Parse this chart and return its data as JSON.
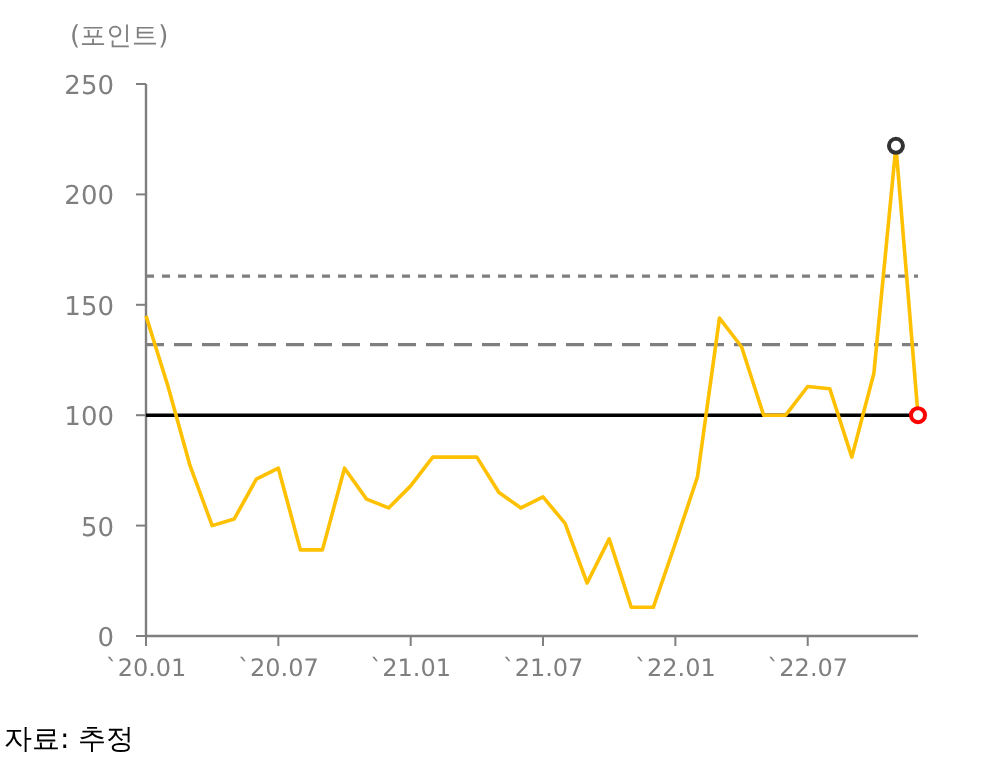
{
  "chart_data": {
    "type": "line",
    "ylabel": "(포인트)",
    "annotations": [
      "자료: 추정"
    ],
    "x": [
      "2020-01",
      "2020-02",
      "2020-03",
      "2020-04",
      "2020-05",
      "2020-06",
      "2020-07",
      "2020-08",
      "2020-09",
      "2020-10",
      "2020-11",
      "2020-12",
      "2021-01",
      "2021-02",
      "2021-03",
      "2021-04",
      "2021-05",
      "2021-06",
      "2021-07",
      "2021-08",
      "2021-09",
      "2021-10",
      "2021-11",
      "2021-12",
      "2022-01",
      "2022-02",
      "2022-03",
      "2022-04",
      "2022-05",
      "2022-06",
      "2022-07",
      "2022-08",
      "2022-09",
      "2022-10",
      "2022-11",
      "2022-12"
    ],
    "series": [
      {
        "color": "#ffc000",
        "marker": "none",
        "values": [
          145,
          113,
          77,
          50,
          53,
          71,
          76,
          39,
          39,
          76,
          62,
          58,
          68,
          81,
          81,
          81,
          65,
          58,
          63,
          51,
          24,
          44,
          13,
          13,
          42,
          72,
          144,
          131,
          100,
          100,
          113,
          112,
          81,
          119,
          222,
          100
        ]
      },
      {
        "type": "scatter",
        "marker": "circle",
        "x": [
          "2022-11",
          "2022-12"
        ],
        "colors": [
          "#333333",
          "#ff0000"
        ],
        "values": [
          222,
          100
        ]
      }
    ],
    "xlim": [
      "2020-01",
      "2022-12"
    ],
    "xticks": [
      {
        "value": "2020-01",
        "label": "`20.01"
      },
      {
        "value": "2020-07",
        "label": "`20.07"
      },
      {
        "value": "2021-01",
        "label": "`21.01"
      },
      {
        "value": "2021-07",
        "label": "`21.07"
      },
      {
        "value": "2022-01",
        "label": "`22.01"
      },
      {
        "value": "2022-07",
        "label": "`22.07"
      }
    ],
    "ylim": [
      0,
      250
    ],
    "yticks": [
      0,
      50,
      100,
      150,
      200,
      250
    ],
    "ref_lines": [
      {
        "axis": "y",
        "value": 163,
        "color": "#7f7f7f",
        "line_style": "dotted"
      },
      {
        "axis": "y",
        "value": 132,
        "color": "#7f7f7f",
        "line_style": "dashed"
      },
      {
        "axis": "y",
        "value": 100,
        "color": "#000000",
        "line_style": "solid"
      }
    ],
    "grid": false
  }
}
